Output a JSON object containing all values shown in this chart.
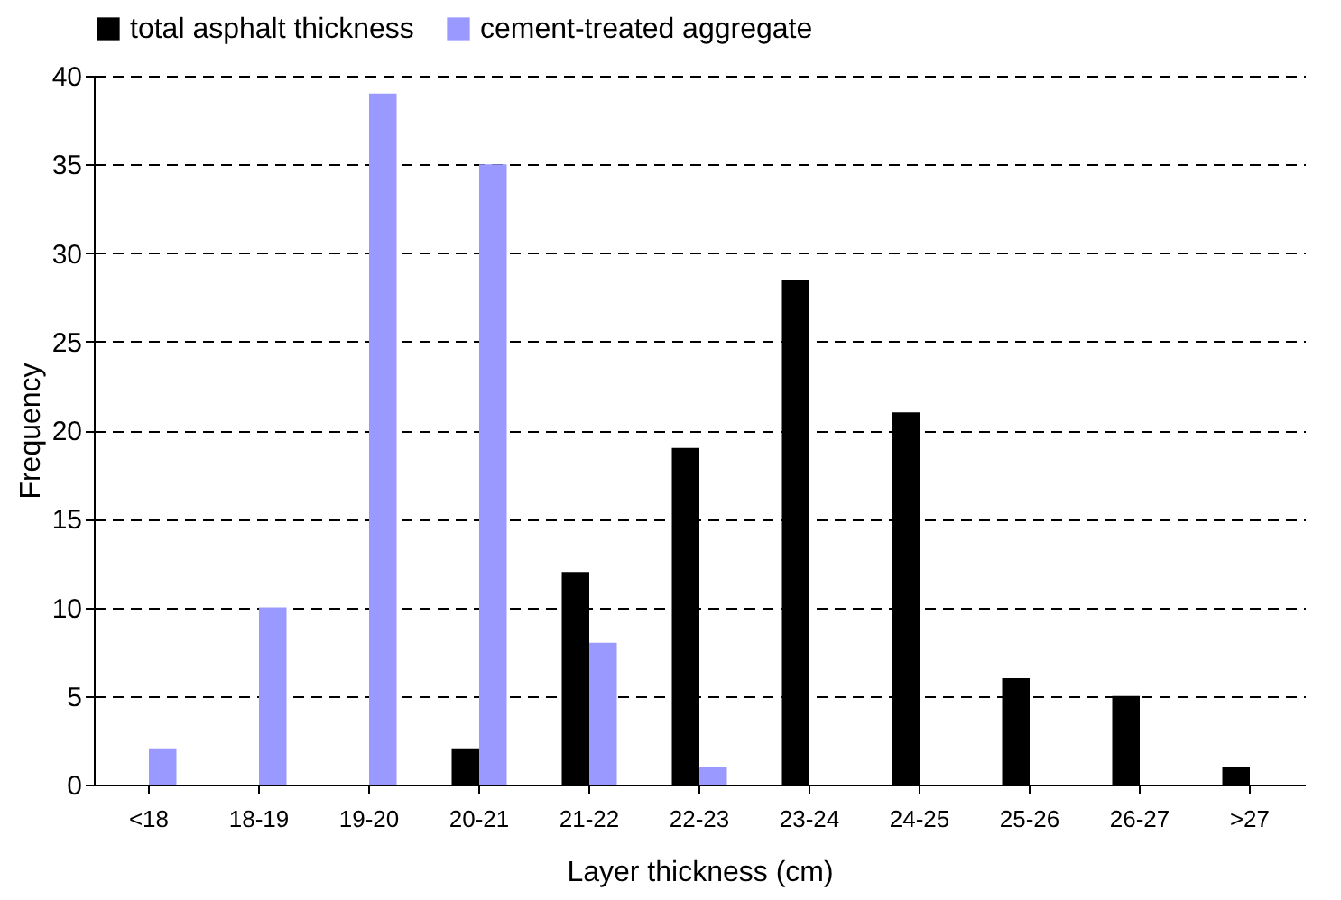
{
  "chart_data": {
    "type": "bar",
    "xlabel": "Layer thickness (cm)",
    "ylabel": "Frequency",
    "categories": [
      "<18",
      "18-19",
      "19-20",
      "20-21",
      "21-22",
      "22-23",
      "23-24",
      "24-25",
      "25-26",
      "26-27",
      ">27"
    ],
    "series": [
      {
        "name": "total asphalt thickness",
        "color": "#000000",
        "values": [
          0,
          0,
          0,
          2,
          12,
          19,
          28.5,
          21,
          6,
          5,
          1
        ]
      },
      {
        "name": "cement-treated aggregate",
        "color": "#9999ff",
        "values": [
          2,
          10,
          39,
          35,
          8,
          1,
          0,
          0,
          0,
          0,
          0
        ]
      }
    ],
    "ylim": [
      0,
      40
    ],
    "yticks": [
      0,
      5,
      10,
      15,
      20,
      25,
      30,
      35,
      40
    ],
    "grid": "y",
    "legend": "top"
  }
}
